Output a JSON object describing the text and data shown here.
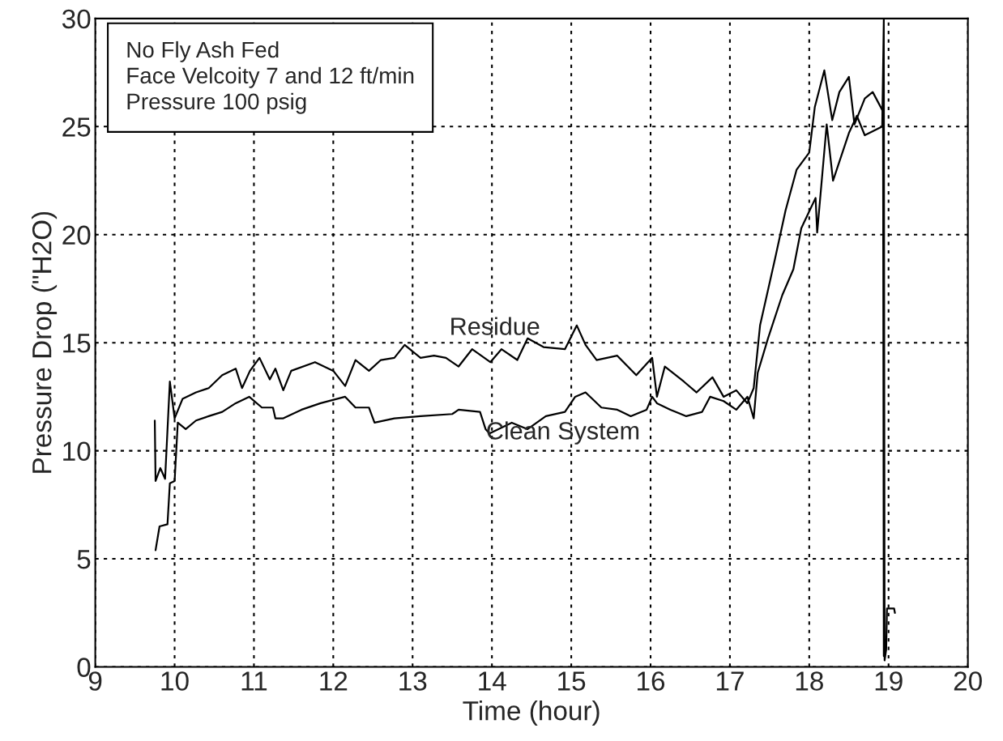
{
  "chart_data": {
    "type": "line",
    "xlabel": "Time (hour)",
    "ylabel": "Pressure Drop (\"H2O)",
    "annotations": [
      "No Fly Ash Fed",
      "Face Velcoity 7 and 12 ft/min",
      "Pressure 100 psig"
    ],
    "series": [
      {
        "name": "Residue",
        "color": "#000000",
        "x": [
          9.75,
          9.76,
          9.82,
          9.88,
          9.94,
          10.0,
          10.1,
          10.27,
          10.43,
          10.6,
          10.77,
          10.85,
          10.95,
          11.07,
          11.2,
          11.27,
          11.37,
          11.47,
          11.77,
          12.0,
          12.15,
          12.28,
          12.45,
          12.6,
          12.77,
          12.9,
          13.1,
          13.27,
          13.42,
          13.58,
          13.75,
          13.98,
          14.12,
          14.32,
          14.45,
          14.65,
          14.92,
          15.07,
          15.18,
          15.32,
          15.58,
          15.82,
          16.02,
          16.08,
          16.18,
          16.42,
          16.58,
          16.78,
          16.92,
          17.08,
          17.22,
          17.3,
          17.38,
          17.57,
          17.7,
          17.84,
          18.0,
          18.07,
          18.19,
          18.29,
          18.38,
          18.5,
          18.57,
          18.7,
          18.8,
          18.93,
          18.94
        ],
        "values": [
          11.4,
          8.6,
          9.2,
          8.7,
          13.2,
          11.5,
          12.4,
          12.7,
          12.9,
          13.5,
          13.8,
          12.9,
          13.7,
          14.3,
          13.3,
          13.8,
          12.8,
          13.7,
          14.1,
          13.7,
          13.0,
          14.2,
          13.7,
          14.2,
          14.3,
          14.9,
          14.3,
          14.4,
          14.3,
          13.9,
          14.7,
          14.1,
          14.7,
          14.2,
          15.2,
          14.8,
          14.7,
          15.8,
          14.9,
          14.2,
          14.4,
          13.5,
          14.3,
          12.5,
          13.9,
          13.2,
          12.7,
          13.4,
          12.5,
          12.8,
          12.2,
          12.9,
          15.8,
          18.9,
          21.1,
          23.0,
          23.8,
          25.9,
          27.6,
          25.3,
          26.6,
          27.3,
          25.1,
          26.3,
          26.6,
          25.7,
          0.5
        ]
      },
      {
        "name": "Clean System",
        "color": "#000000",
        "x": [
          9.76,
          9.81,
          9.91,
          9.94,
          10.0,
          10.04,
          10.14,
          10.27,
          10.43,
          10.6,
          10.77,
          10.94,
          11.1,
          11.24,
          11.27,
          11.37,
          11.6,
          11.84,
          12.15,
          12.28,
          12.45,
          12.52,
          12.77,
          13.1,
          13.5,
          13.58,
          13.85,
          13.92,
          13.97,
          14.25,
          14.45,
          14.68,
          14.92,
          15.05,
          15.18,
          15.38,
          15.58,
          15.75,
          15.95,
          16.02,
          16.08,
          16.25,
          16.45,
          16.65,
          16.75,
          16.92,
          17.08,
          17.22,
          17.3,
          17.35,
          17.48,
          17.66,
          17.8,
          17.9,
          18.08,
          18.1,
          18.22,
          18.3,
          18.5,
          18.6,
          18.7,
          18.92,
          18.94,
          18.95,
          18.97,
          18.98,
          19.07,
          19.08
        ],
        "values": [
          5.4,
          6.5,
          6.6,
          8.5,
          8.6,
          11.3,
          11.0,
          11.4,
          11.6,
          11.8,
          12.2,
          12.5,
          12.0,
          12.0,
          11.5,
          11.5,
          11.9,
          12.2,
          12.5,
          12.0,
          12.0,
          11.3,
          11.5,
          11.6,
          11.7,
          11.9,
          11.8,
          11.0,
          10.8,
          11.3,
          11.0,
          11.6,
          11.8,
          12.5,
          12.7,
          12.0,
          11.9,
          11.6,
          11.9,
          12.5,
          12.2,
          11.9,
          11.6,
          11.8,
          12.5,
          12.3,
          11.9,
          12.5,
          11.5,
          13.6,
          15.2,
          17.2,
          18.4,
          20.3,
          21.7,
          20.1,
          25.1,
          22.5,
          24.7,
          25.5,
          24.6,
          25.0,
          30.0,
          0.3,
          0.8,
          2.7,
          2.7,
          2.5
        ]
      }
    ],
    "xlim": [
      9,
      20
    ],
    "xticks": [
      9,
      10,
      11,
      12,
      13,
      14,
      15,
      16,
      17,
      18,
      19,
      20
    ],
    "ylim": [
      0,
      30
    ],
    "yticks": [
      0,
      5,
      10,
      15,
      20,
      25,
      30
    ],
    "grid": true,
    "line_style": "solid"
  }
}
